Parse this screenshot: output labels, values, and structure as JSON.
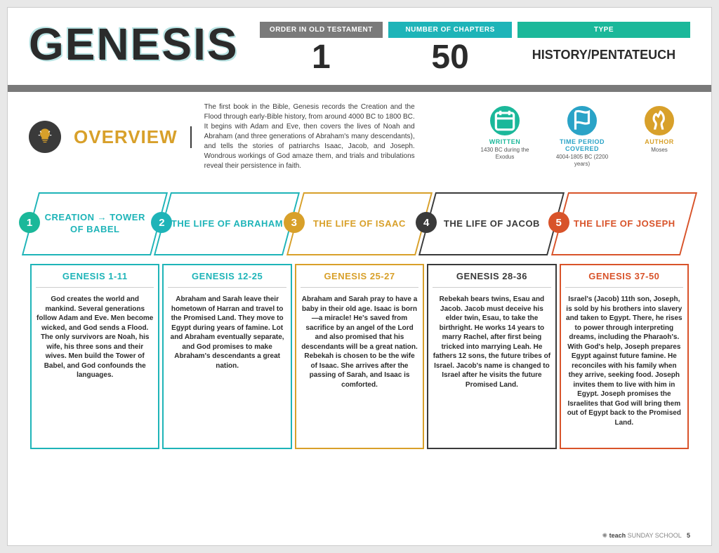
{
  "title": "GENESIS",
  "colors": {
    "gray": "#7a7a7a",
    "teal": "#1eb4b8",
    "tealDark": "#0e9aa0",
    "green": "#1bb89a",
    "blue": "#2aa3c7",
    "amber": "#d8a02a",
    "dark": "#3a3a3a",
    "orange": "#d8532a"
  },
  "stats": [
    {
      "label": "ORDER IN OLD TESTAMENT",
      "value": "1",
      "bg": "#7a7a7a"
    },
    {
      "label": "NUMBER OF CHAPTERS",
      "value": "50",
      "bg": "#1eb4b8"
    },
    {
      "label": "TYPE",
      "value": "HISTORY/PENTATEUCH",
      "bg": "#1bb89a",
      "isType": true
    }
  ],
  "overview": {
    "heading": "OVERVIEW",
    "text": "The first book in the Bible, Genesis records the Creation and the Flood through early-Bible history, from around 4000 BC to 1800 BC. It begins with Adam and Eve, then covers the lives of Noah and Abraham (and three generations of Abraham's many descendants), and tells the stories of patriarchs Isaac, Jacob, and Joseph. Wondrous workings of God amaze them, and trials and tribulations reveal their persistence in faith.",
    "meta": [
      {
        "label": "WRITTEN",
        "sub": "1430 BC during the Exodus",
        "color": "#1bb89a"
      },
      {
        "label": "TIME PERIOD COVERED",
        "sub": "4004-1805 BC (2200 years)",
        "color": "#2aa3c7"
      },
      {
        "label": "AUTHOR",
        "sub": "Moses",
        "color": "#d8a02a"
      }
    ]
  },
  "sections": [
    {
      "num": "1",
      "badge": "#1bb89a",
      "border": "#1eb4b8",
      "titleColor": "#1eb4b8",
      "title": "CREATION → TOWER OF BABEL",
      "range": "GENESIS 1-11",
      "body": "God creates the world and mankind. Several generations follow Adam and Eve. Men become wicked, and God sends a Flood. The only survivors are Noah, his wife, his three sons and their wives. Men build the Tower of Babel, and God confounds the languages."
    },
    {
      "num": "2",
      "badge": "#1eb4b8",
      "border": "#1eb4b8",
      "titleColor": "#1eb4b8",
      "title": "THE LIFE OF ABRAHAM",
      "range": "GENESIS 12-25",
      "body": "Abraham and Sarah leave their hometown of Harran and travel to the Promised Land. They move to Egypt during years of famine. Lot and Abraham eventually separate, and God promises to make Abraham's descendants a great nation."
    },
    {
      "num": "3",
      "badge": "#d8a02a",
      "border": "#d8a02a",
      "titleColor": "#d8a02a",
      "title": "THE LIFE OF ISAAC",
      "range": "GENESIS 25-27",
      "body": "Abraham and Sarah pray to have a baby in their old age. Isaac is born—a miracle! He's saved from sacrifice by an angel of the Lord and also promised that his descendants will be a great nation. Rebekah is chosen to be the wife of Isaac. She arrives after the passing of Sarah, and Isaac is comforted."
    },
    {
      "num": "4",
      "badge": "#3a3a3a",
      "border": "#3a3a3a",
      "titleColor": "#3a3a3a",
      "title": "THE LIFE OF JACOB",
      "range": "GENESIS 28-36",
      "body": "Rebekah bears twins, Esau and Jacob. Jacob must deceive his elder twin, Esau, to take the birthright. He works 14 years to marry Rachel, after first being tricked into marrying Leah. He fathers 12 sons, the future tribes of Israel. Jacob's name is changed to Israel after he visits the future Promised Land."
    },
    {
      "num": "5",
      "badge": "#d8532a",
      "border": "#d8532a",
      "titleColor": "#d8532a",
      "title": "THE LIFE OF JOSEPH",
      "range": "GENESIS 37-50",
      "body": "Israel's (Jacob) 11th son, Joseph, is sold by his brothers into slavery and taken to Egypt. There, he rises to power through interpreting dreams, including the Pharaoh's. With God's help, Joseph prepares Egypt against future famine. He reconciles with his family when they arrive, seeking food. Joseph invites them to live with him in Egypt. Joseph promises the Israelites that God will bring them out of Egypt back to the Promised Land."
    }
  ],
  "footer": {
    "brand": "teach",
    "tagline": "SUNDAY SCHOOL",
    "page": "5"
  }
}
